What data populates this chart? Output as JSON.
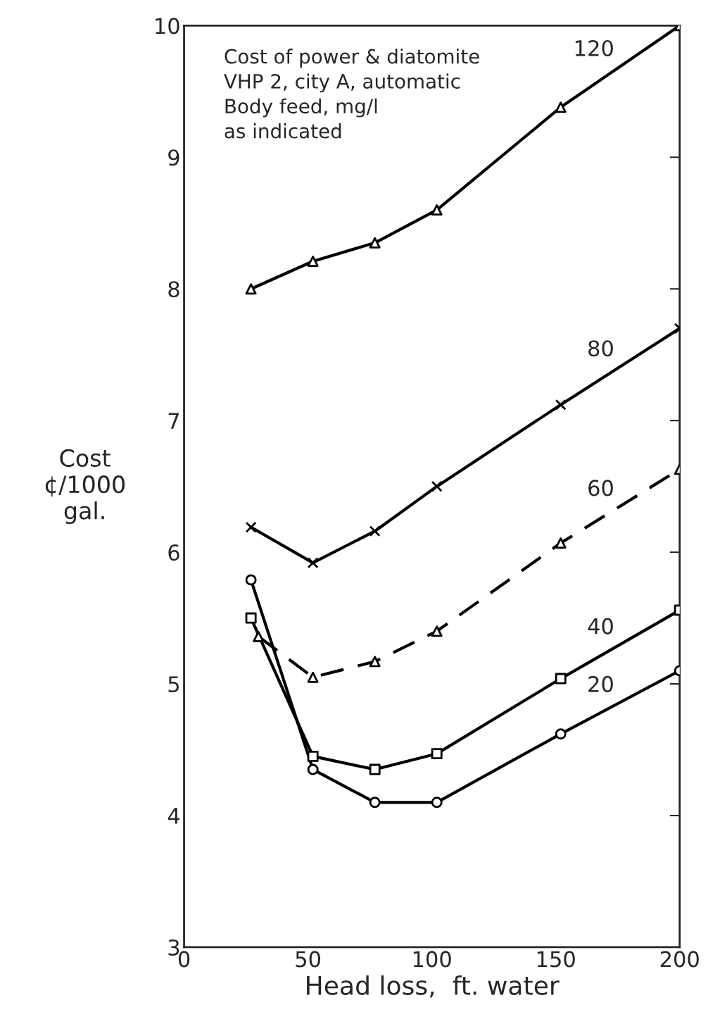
{
  "chart_data": {
    "type": "line",
    "xlabel": "Head loss,  ft. water",
    "ylabel": "Cost\n¢/1000\ngal.",
    "annotations": [
      "Cost of power & diatomite\nVHP 2, city A, automatic\nBody feed, mg/l\nas indicated"
    ],
    "xlim": [
      0,
      200
    ],
    "xticks": [
      0,
      50,
      100,
      150,
      200
    ],
    "ylim": [
      3,
      10
    ],
    "yticks": [
      3,
      4,
      5,
      6,
      7,
      8,
      9,
      10
    ],
    "grid": false,
    "legend": false,
    "series": [
      {
        "name": "120",
        "color": "#000000",
        "marker": "triangle",
        "line_style": "solid",
        "x": [
          27,
          52,
          77,
          102,
          152,
          200
        ],
        "values": [
          8.0,
          8.21,
          8.35,
          8.6,
          9.38,
          10.0
        ]
      },
      {
        "name": "80",
        "color": "#000000",
        "marker": "cross",
        "line_style": "solid",
        "x": [
          27,
          52,
          77,
          102,
          152,
          200
        ],
        "values": [
          6.19,
          5.92,
          6.16,
          6.5,
          7.12,
          7.7
        ]
      },
      {
        "name": "60",
        "color": "#000000",
        "marker": "triangle",
        "line_style": "dashed",
        "x": [
          30,
          52,
          77,
          102,
          152,
          200
        ],
        "values": [
          5.36,
          5.05,
          5.17,
          5.4,
          6.07,
          6.63
        ]
      },
      {
        "name": "40",
        "color": "#000000",
        "marker": "square",
        "line_style": "solid",
        "x": [
          27,
          52,
          77,
          102,
          152,
          200
        ],
        "values": [
          5.5,
          4.45,
          4.35,
          4.47,
          5.04,
          5.56
        ]
      },
      {
        "name": "20",
        "color": "#000000",
        "marker": "circle",
        "line_style": "solid",
        "x": [
          27,
          52,
          77,
          102,
          152,
          200
        ],
        "values": [
          5.79,
          4.35,
          4.1,
          4.1,
          4.62,
          5.1
        ]
      }
    ]
  }
}
